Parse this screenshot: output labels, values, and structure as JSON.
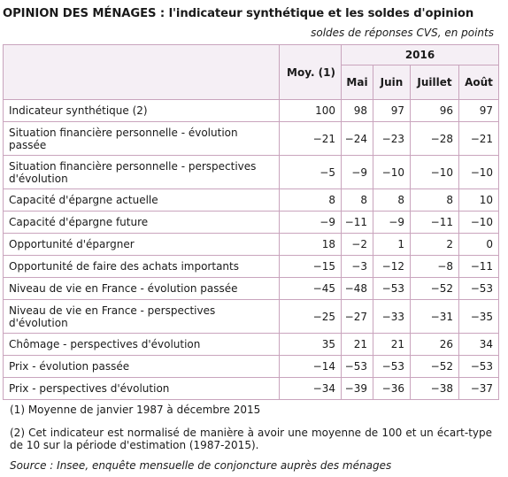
{
  "title": "OPINION DES MÉNAGES : l'indicateur synthétique et les soldes d'opinion",
  "subtitle": "soldes de réponses CVS, en points",
  "table": {
    "year": "2016",
    "columns": [
      "Moy. (1)",
      "Mai",
      "Juin",
      "Juillet",
      "Août"
    ],
    "rows": [
      {
        "label": "Indicateur synthétique (2)",
        "values": [
          "100",
          "98",
          "97",
          "96",
          "97"
        ]
      },
      {
        "label": "Situation financière personnelle - évolution passée",
        "values": [
          "−21",
          "−24",
          "−23",
          "−28",
          "−21"
        ]
      },
      {
        "label": "Situation financière personnelle - perspectives d'évolution",
        "values": [
          "−5",
          "−9",
          "−10",
          "−10",
          "−10"
        ]
      },
      {
        "label": "Capacité d'épargne actuelle",
        "values": [
          "8",
          "8",
          "8",
          "8",
          "10"
        ]
      },
      {
        "label": "Capacité d'épargne future",
        "values": [
          "−9",
          "−11",
          "−9",
          "−11",
          "−10"
        ]
      },
      {
        "label": "Opportunité d'épargner",
        "values": [
          "18",
          "−2",
          "1",
          "2",
          "0"
        ]
      },
      {
        "label": "Opportunité de faire des achats importants",
        "values": [
          "−15",
          "−3",
          "−12",
          "−8",
          "−11"
        ]
      },
      {
        "label": "Niveau de vie en France - évolution passée",
        "values": [
          "−45",
          "−48",
          "−53",
          "−52",
          "−53"
        ]
      },
      {
        "label": "Niveau de vie en France - perspectives d'évolution",
        "values": [
          "−25",
          "−27",
          "−33",
          "−31",
          "−35"
        ]
      },
      {
        "label": "Chômage - perspectives d'évolution",
        "values": [
          "35",
          "21",
          "21",
          "26",
          "34"
        ]
      },
      {
        "label": "Prix - évolution passée",
        "values": [
          "−14",
          "−53",
          "−53",
          "−52",
          "−53"
        ]
      },
      {
        "label": "Prix - perspectives d'évolution",
        "values": [
          "−34",
          "−39",
          "−36",
          "−38",
          "−37"
        ]
      }
    ]
  },
  "notes": {
    "note1": "(1) Moyenne de janvier 1987 à décembre 2015",
    "note2": "(2) Cet indicateur est normalisé de manière à avoir une moyenne de 100 et un écart-type de 10 sur la période d'estimation (1987-2015).",
    "source": "Source : Insee, enquête mensuelle de conjoncture auprès des ménages"
  }
}
